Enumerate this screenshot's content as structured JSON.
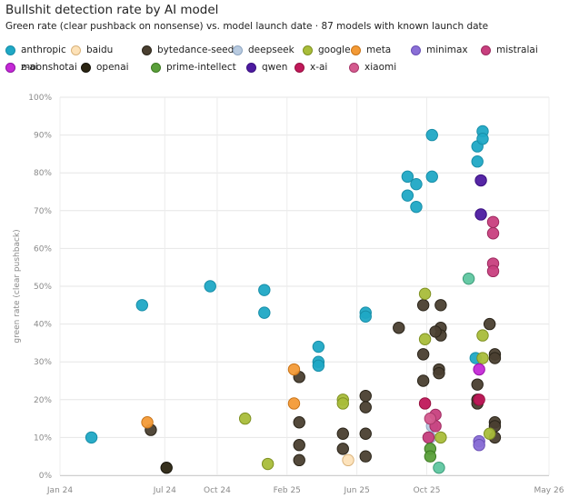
{
  "chart_data": {
    "type": "scatter",
    "title": "Bullshit detection rate by AI model",
    "subtitle": "Green rate (clear pushback on nonsense) vs. model launch date · 87 models with known launch date",
    "xlabel": "",
    "ylabel": "green rate (clear pushback)",
    "x_ticks": [
      "Jan 24",
      "Jul 24",
      "Oct 24",
      "Feb 25",
      "Jun 25",
      "Oct 25",
      "May 26"
    ],
    "x_tick_positions": [
      0,
      6,
      9,
      13,
      17,
      21,
      28
    ],
    "xlim": [
      0,
      28
    ],
    "x_units": "months since Jan 2024",
    "y_ticks": [
      "0%",
      "10%",
      "20%",
      "30%",
      "40%",
      "50%",
      "60%",
      "70%",
      "80%",
      "90%",
      "100%"
    ],
    "ylim": [
      0,
      100
    ],
    "grid": true,
    "legend_position": "top",
    "series": [
      {
        "name": "anthropic",
        "color": "#1fa8c5",
        "border": "#178ea8",
        "points": [
          [
            1.8,
            10
          ],
          [
            4.7,
            45
          ],
          [
            8.6,
            50
          ],
          [
            11.7,
            49
          ],
          [
            11.7,
            43
          ],
          [
            14.8,
            34
          ],
          [
            14.8,
            30
          ],
          [
            14.8,
            29
          ],
          [
            17.5,
            43
          ],
          [
            17.5,
            42
          ],
          [
            19.9,
            79
          ],
          [
            19.9,
            74
          ],
          [
            20.4,
            77
          ],
          [
            20.4,
            71
          ],
          [
            21.3,
            90
          ],
          [
            21.3,
            79
          ],
          [
            23.9,
            87
          ],
          [
            23.9,
            83
          ],
          [
            24.2,
            91
          ],
          [
            24.2,
            89
          ],
          [
            23.8,
            31
          ]
        ]
      },
      {
        "name": "baidu",
        "color": "#fde2b8",
        "border": "#d9b27a",
        "points": [
          [
            16.5,
            4
          ]
        ]
      },
      {
        "name": "bytedance-seed",
        "color": "#4a3f30",
        "border": "#2a2419",
        "points": [
          [
            5.2,
            12
          ],
          [
            13.7,
            26
          ],
          [
            13.7,
            14
          ],
          [
            13.7,
            8
          ],
          [
            13.7,
            4
          ],
          [
            16.2,
            11
          ],
          [
            16.2,
            7
          ],
          [
            17.5,
            21
          ],
          [
            17.5,
            18
          ],
          [
            17.5,
            11
          ],
          [
            17.5,
            5
          ],
          [
            19.4,
            39
          ],
          [
            20.8,
            45
          ],
          [
            20.8,
            32
          ],
          [
            20.8,
            25
          ],
          [
            21.8,
            45
          ],
          [
            21.8,
            39
          ],
          [
            21.8,
            37
          ],
          [
            21.7,
            28
          ],
          [
            21.7,
            27
          ],
          [
            21.5,
            38
          ],
          [
            23.9,
            24
          ],
          [
            23.9,
            20
          ],
          [
            23.9,
            19
          ],
          [
            24.6,
            40
          ],
          [
            24.9,
            32
          ],
          [
            24.9,
            31
          ],
          [
            24.9,
            14
          ],
          [
            24.9,
            13
          ],
          [
            24.9,
            10
          ]
        ]
      },
      {
        "name": "deepseek",
        "color": "#b9cbe0",
        "border": "#8ea6c2",
        "points": [
          [
            21.3,
            13
          ],
          [
            21.2,
            10
          ]
        ]
      },
      {
        "name": "google",
        "color": "#a9bd3a",
        "border": "#7f9122",
        "points": [
          [
            10.6,
            15
          ],
          [
            11.9,
            3
          ],
          [
            16.2,
            20
          ],
          [
            16.2,
            19
          ],
          [
            20.9,
            48
          ],
          [
            20.9,
            36
          ],
          [
            21.8,
            10
          ],
          [
            24.2,
            37
          ],
          [
            24.2,
            31
          ],
          [
            24.6,
            11
          ]
        ]
      },
      {
        "name": "meta",
        "color": "#f39a36",
        "border": "#c97418",
        "points": [
          [
            5.0,
            14
          ],
          [
            13.4,
            28
          ],
          [
            13.4,
            19
          ]
        ]
      },
      {
        "name": "minimax",
        "color": "#8a6fd6",
        "border": "#6a4fb6",
        "points": [
          [
            24.0,
            9
          ],
          [
            24.0,
            8
          ]
        ]
      },
      {
        "name": "mistralai",
        "color": "#c83f7e",
        "border": "#9d2a5f",
        "points": [
          [
            24.8,
            67
          ],
          [
            24.8,
            64
          ],
          [
            24.8,
            56
          ],
          [
            24.8,
            54
          ],
          [
            21.5,
            16
          ],
          [
            21.5,
            13
          ],
          [
            21.1,
            10
          ]
        ]
      },
      {
        "name": "moonshotai",
        "color": "#5fc6a0",
        "border": "#3a9a77",
        "points": [
          [
            23.4,
            52
          ],
          [
            21.7,
            2
          ]
        ]
      },
      {
        "name": "openai",
        "color": "#2b2512",
        "border": "#15120a",
        "points": [
          [
            6.1,
            2
          ]
        ]
      },
      {
        "name": "prime-intellect",
        "color": "#5a9f3a",
        "border": "#3d7a22",
        "points": [
          [
            21.2,
            7
          ],
          [
            21.2,
            5
          ]
        ]
      },
      {
        "name": "qwen",
        "color": "#4d1aa0",
        "border": "#3a1080",
        "points": [
          [
            24.1,
            78
          ],
          [
            24.1,
            69
          ]
        ]
      },
      {
        "name": "x-ai",
        "color": "#c0185a",
        "border": "#96103f",
        "points": [
          [
            20.9,
            19
          ],
          [
            24.0,
            20
          ]
        ]
      },
      {
        "name": "xiaomi",
        "color": "#d45a8e",
        "border": "#a83a6b",
        "points": [
          [
            21.2,
            15
          ]
        ]
      },
      {
        "name": "z-ai",
        "color": "#c42ad6",
        "border": "#9a12ab",
        "points": [
          [
            24.0,
            28
          ]
        ]
      }
    ]
  }
}
